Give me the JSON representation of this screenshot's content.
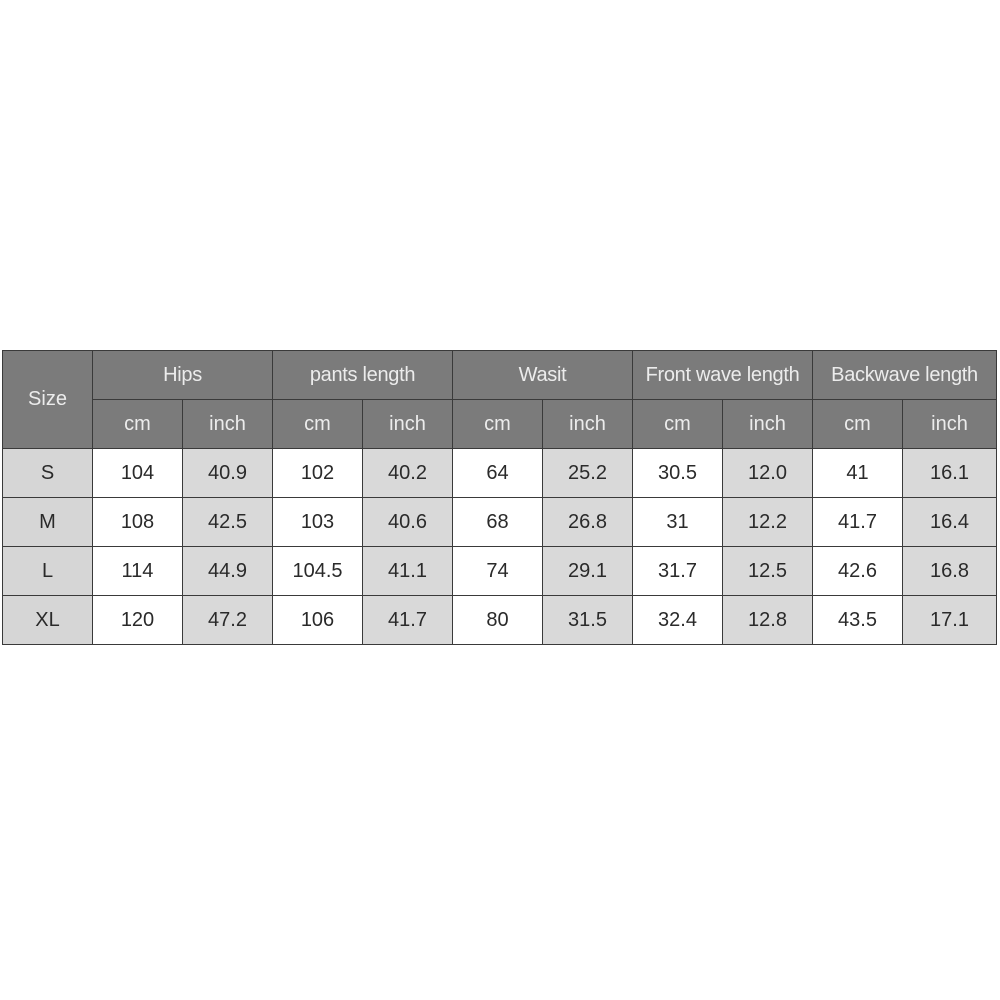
{
  "table": {
    "size_header": "Size",
    "groups": [
      "Hips",
      "pants length",
      "Wasit",
      "Front wave length",
      "Backwave length"
    ],
    "units": [
      "cm",
      "inch"
    ],
    "rows": [
      {
        "size": "S",
        "values": [
          "104",
          "40.9",
          "102",
          "40.2",
          "64",
          "25.2",
          "30.5",
          "12.0",
          "41",
          "16.1"
        ]
      },
      {
        "size": "M",
        "values": [
          "108",
          "42.5",
          "103",
          "40.6",
          "68",
          "26.8",
          "31",
          "12.2",
          "41.7",
          "16.4"
        ]
      },
      {
        "size": "L",
        "values": [
          "114",
          "44.9",
          "104.5",
          "41.1",
          "74",
          "29.1",
          "31.7",
          "12.5",
          "42.6",
          "16.8"
        ]
      },
      {
        "size": "XL",
        "values": [
          "120",
          "47.2",
          "106",
          "41.7",
          "80",
          "31.5",
          "32.4",
          "12.8",
          "43.5",
          "17.1"
        ]
      }
    ]
  },
  "colors": {
    "header_bg": "#7b7b7b",
    "shaded_bg": "#d9d9d9",
    "header_text": "#ececec"
  }
}
